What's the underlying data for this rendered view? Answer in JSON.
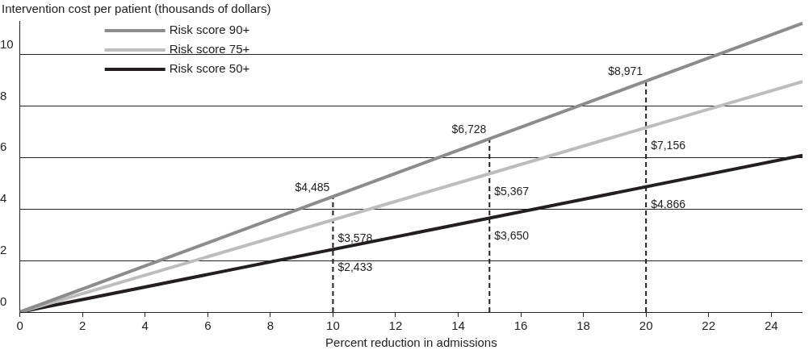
{
  "chart_data": {
    "type": "line",
    "ylabel": "Intervention cost per patient (thousands of dollars)",
    "xlabel": "Percent reduction in admissions",
    "xlim": [
      0,
      25
    ],
    "xticks": [
      0,
      2,
      4,
      6,
      8,
      10,
      12,
      14,
      16,
      18,
      20,
      22,
      24
    ],
    "ylim": [
      0,
      11.3
    ],
    "yticks": [
      0,
      2,
      4,
      6,
      8,
      10
    ],
    "grid": "y",
    "legend": "top left",
    "marker": "none",
    "series": [
      {
        "name": "Risk score 90+",
        "color": "#8c8c8c",
        "x": [
          0,
          25
        ],
        "values": [
          0,
          11.21
        ]
      },
      {
        "name": "Risk score 75+",
        "color": "#bdbdbd",
        "x": [
          0,
          25
        ],
        "values": [
          0,
          8.95
        ]
      },
      {
        "name": "Risk score 50+",
        "color": "#231f20",
        "x": [
          0,
          25
        ],
        "values": [
          0,
          6.08
        ]
      },
      {
        "color": "#231f20",
        "line_style": "dashed",
        "x": [
          10,
          10
        ],
        "values": [
          0,
          4.485
        ]
      },
      {
        "color": "#231f20",
        "line_style": "dashed",
        "x": [
          15,
          15
        ],
        "values": [
          0,
          6.728
        ]
      },
      {
        "color": "#231f20",
        "line_style": "dashed",
        "x": [
          20,
          20
        ],
        "values": [
          0,
          8.971
        ]
      }
    ],
    "annotations": [
      {
        "text": "$4,485",
        "x": 10,
        "y": 4.485
      },
      {
        "text": "$3,578",
        "x": 10,
        "y": 3.578
      },
      {
        "text": "$2,433",
        "x": 10,
        "y": 2.433
      },
      {
        "text": "$6,728",
        "x": 15,
        "y": 6.728
      },
      {
        "text": "$5,367",
        "x": 15,
        "y": 5.367
      },
      {
        "text": "$3,650",
        "x": 15,
        "y": 3.65
      },
      {
        "text": "$8,971",
        "x": 20,
        "y": 8.971
      },
      {
        "text": "$7,156",
        "x": 20,
        "y": 7.156
      },
      {
        "text": "$4,866",
        "x": 20,
        "y": 4.866
      }
    ]
  }
}
